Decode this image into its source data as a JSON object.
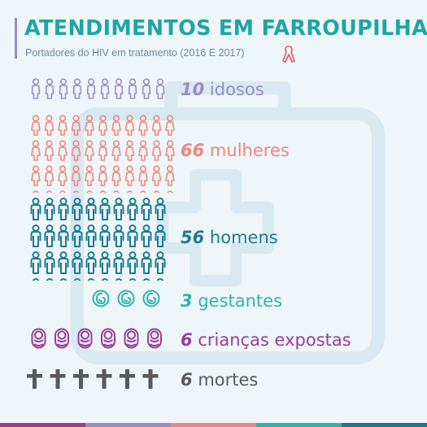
{
  "header": {
    "title": "ATENDIMENTOS EM FARROUPILHA",
    "subtitle": "Portadores do HIV em tratamento (2016 E 2017)",
    "ribbon_icon": "awareness-ribbon-icon"
  },
  "colors": {
    "background": "#eef6f9",
    "title": "#1fa6a3",
    "elderly": "#9b8cc4",
    "women": "#f0857f",
    "men": "#1b7a96",
    "pregnant": "#2db3ae",
    "children": "#9b3d98",
    "deaths": "#595959"
  },
  "groups": [
    {
      "id": "idosos",
      "count": 10,
      "number": "10",
      "label": "idosos",
      "icon": "elderly-person-icon",
      "color": "#9b8cc4"
    },
    {
      "id": "mulheres",
      "count": 66,
      "number": "66",
      "label": "mulheres",
      "icon": "woman-icon",
      "color": "#f0857f"
    },
    {
      "id": "homens",
      "count": 56,
      "number": "56",
      "label": "homens",
      "icon": "man-icon",
      "color": "#1b7a96"
    },
    {
      "id": "gestantes",
      "count": 3,
      "number": "3",
      "label": "gestantes",
      "icon": "fetus-icon",
      "color": "#2db3ae"
    },
    {
      "id": "criancas",
      "count": 6,
      "number": "6",
      "label": "crianças expostas",
      "icon": "baby-icon",
      "color": "#9b3d98"
    },
    {
      "id": "mortes",
      "count": 6,
      "number": "6",
      "label": "mortes",
      "icon": "cross-icon",
      "color": "#595959"
    }
  ],
  "footer_stripe_colors": [
    "#9b3d98",
    "#9b8cc4",
    "#f0857f",
    "#2db3ae",
    "#1b7a96"
  ]
}
